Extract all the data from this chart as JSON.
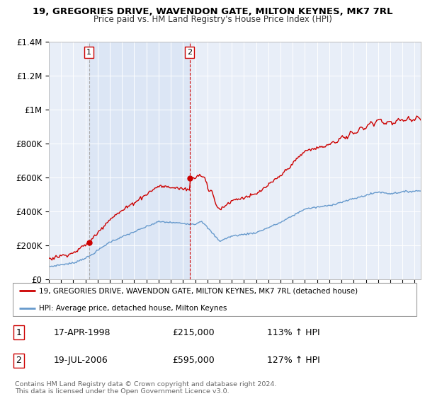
{
  "title": "19, GREGORIES DRIVE, WAVENDON GATE, MILTON KEYNES, MK7 7RL",
  "subtitle": "Price paid vs. HM Land Registry's House Price Index (HPI)",
  "ylim": [
    0,
    1400000
  ],
  "yticks": [
    0,
    200000,
    400000,
    600000,
    800000,
    1000000,
    1200000,
    1400000
  ],
  "ytick_labels": [
    "£0",
    "£200K",
    "£400K",
    "£600K",
    "£800K",
    "£1M",
    "£1.2M",
    "£1.4M"
  ],
  "plot_bg_color": "#e8eef8",
  "plot_bg_shaded": "#d0dcf0",
  "grid_color": "#ffffff",
  "red_line_color": "#cc0000",
  "blue_line_color": "#6699cc",
  "sale1_date_x": 1998.29,
  "sale1_price": 215000,
  "sale2_date_x": 2006.54,
  "sale2_price": 595000,
  "legend_line1": "19, GREGORIES DRIVE, WAVENDON GATE, MILTON KEYNES, MK7 7RL (detached house)",
  "legend_line2": "HPI: Average price, detached house, Milton Keynes",
  "annotation1_date": "17-APR-1998",
  "annotation1_price": "£215,000",
  "annotation1_hpi": "113% ↑ HPI",
  "annotation2_date": "19-JUL-2006",
  "annotation2_price": "£595,000",
  "annotation2_hpi": "127% ↑ HPI",
  "copyright_text": "Contains HM Land Registry data © Crown copyright and database right 2024.\nThis data is licensed under the Open Government Licence v3.0.",
  "xmin": 1995.0,
  "xmax": 2025.5
}
